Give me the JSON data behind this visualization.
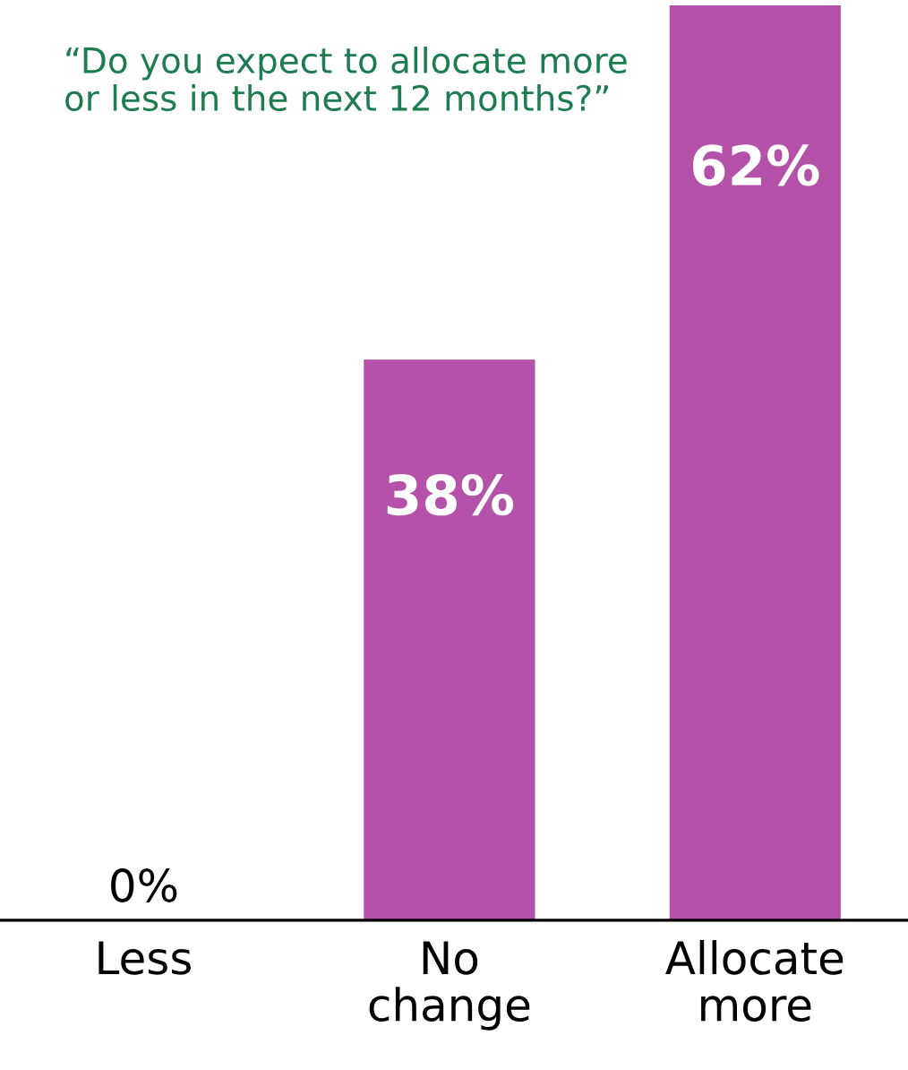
{
  "chart_data": {
    "type": "bar",
    "title": "“Do you expect to allocate more or less in the next 12 months?”",
    "categories": [
      "Less",
      "No change",
      "Allocate more"
    ],
    "values": [
      0,
      38,
      62
    ],
    "value_labels": [
      "0%",
      "38%",
      "62%"
    ],
    "color": "#b452aa",
    "grid": false,
    "legend": false
  }
}
